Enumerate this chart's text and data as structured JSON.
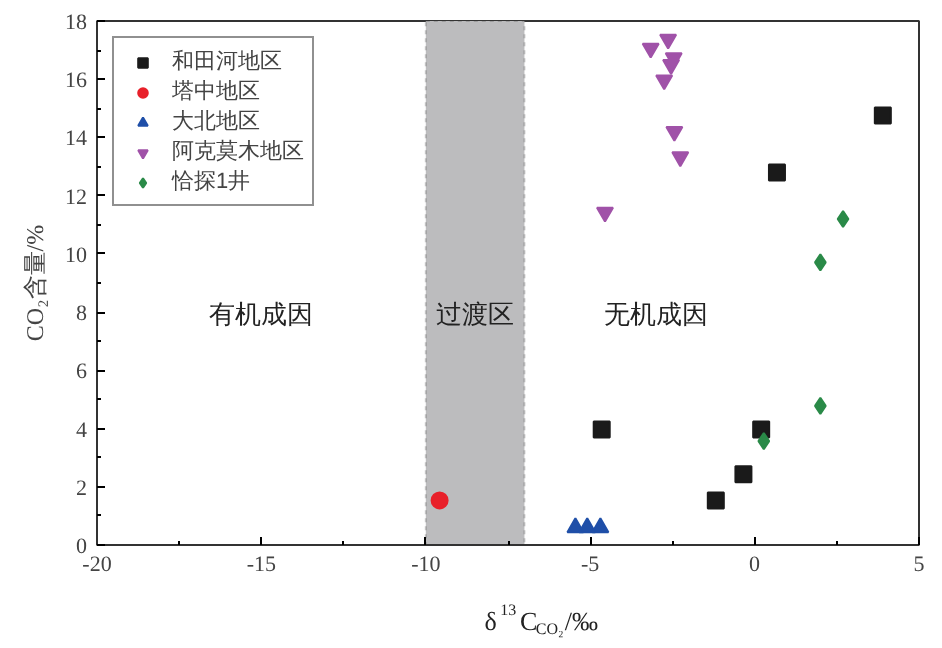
{
  "chart_data": {
    "type": "scatter",
    "xlabel": "δ$^{13}$C$_{CO₂}$/‰",
    "ylabel": "CO₂含量/%",
    "xlim": [
      -20,
      5
    ],
    "ylim": [
      0,
      18
    ],
    "xticks": [
      -20,
      -15,
      -10,
      -5,
      0,
      5
    ],
    "yticks": [
      0,
      2,
      4,
      6,
      8,
      10,
      12,
      14,
      16,
      18
    ],
    "grid": false,
    "legend": "top left",
    "series": [
      {
        "name": "和田河地区",
        "color": "#1a1a1a",
        "marker": "square",
        "x": [
          3.9,
          0.68,
          -4.65,
          0.2,
          -0.34,
          -1.18
        ],
        "values": [
          14.75,
          12.8,
          3.97,
          3.97,
          2.43,
          1.53
        ]
      },
      {
        "name": "塔中地区",
        "color": "#e8202a",
        "marker": "circle",
        "x": [
          -9.58
        ],
        "values": [
          1.53
        ]
      },
      {
        "name": "大北地区",
        "color": "#1f4fa8",
        "marker": "triangle",
        "x": [
          -5.45,
          -5.09,
          -4.69
        ],
        "values": [
          0.6,
          0.6,
          0.6
        ]
      },
      {
        "name": "阿克莫木地区",
        "color": "#a052a8",
        "x": [
          -3.16,
          -2.63,
          -2.46,
          -2.54,
          -2.75,
          -2.44,
          -2.26,
          -4.55
        ],
        "values": [
          17.06,
          17.37,
          16.73,
          16.5,
          15.97,
          14.2,
          13.33,
          11.43
        ]
      },
      {
        "name": "恰探1井",
        "color": "#2a8a48",
        "marker": "diamond",
        "x": [
          2.69,
          2.0,
          2.0,
          0.28
        ],
        "values": [
          11.2,
          9.71,
          4.78,
          3.57
        ]
      }
    ],
    "bands": [
      {
        "axis": "x",
        "from": -10,
        "to": -7,
        "label": "过渡区",
        "color": "#bcbcbe"
      }
    ],
    "annotations": [
      "有机成因",
      "无机成因"
    ]
  }
}
